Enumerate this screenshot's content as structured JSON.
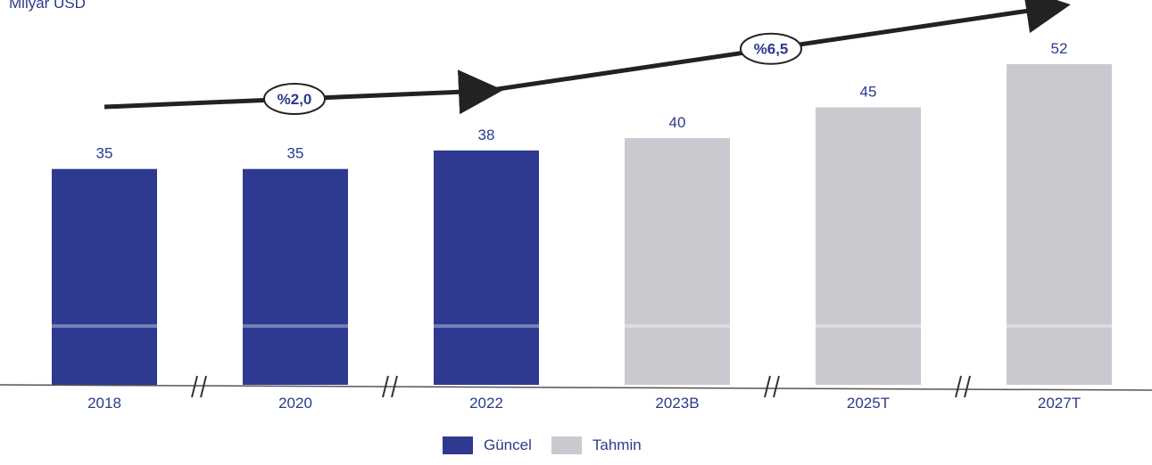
{
  "chart_data": {
    "type": "bar",
    "unit_label": "Milyar USD",
    "categories": [
      "2018",
      "2020",
      "2022",
      "2023B",
      "2025T",
      "2027T"
    ],
    "values": [
      35,
      35,
      38,
      40,
      45,
      52
    ],
    "series_type": [
      "Güncel",
      "Güncel",
      "Güncel",
      "Tahmin",
      "Tahmin",
      "Tahmin"
    ],
    "legend": [
      {
        "name": "Güncel",
        "color": "#2e3a8f"
      },
      {
        "name": "Tahmin",
        "color": "#c9cacf"
      }
    ],
    "growth_annotations": [
      {
        "label": "%2,0",
        "from": "2018",
        "to": "2022"
      },
      {
        "label": "%6,5",
        "from": "2022",
        "to": "2027T"
      }
    ],
    "ylim": [
      0,
      52
    ],
    "grid": false,
    "legend_position": "bottom"
  }
}
